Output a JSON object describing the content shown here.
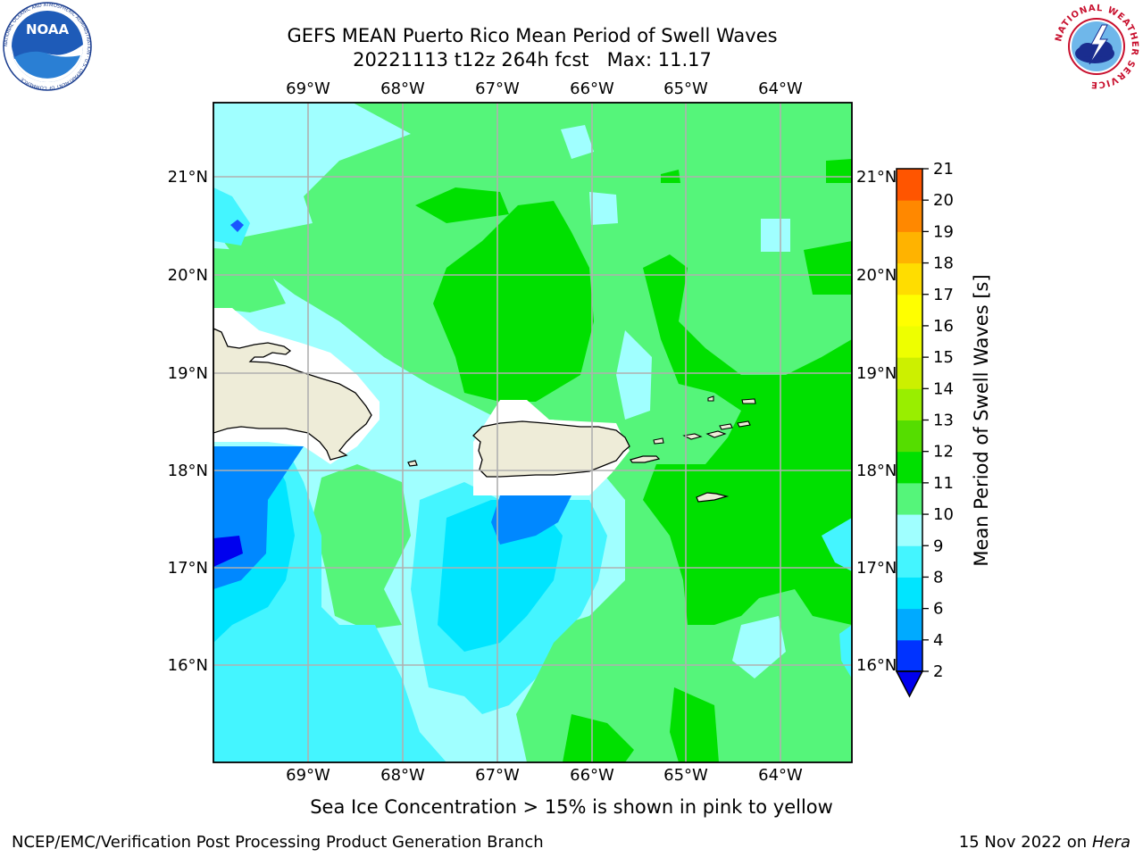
{
  "title": {
    "line1": "GEFS MEAN Puerto Rico Mean Period of Swell Waves",
    "line2": "20221113 t12z 264h fcst   Max: 11.17"
  },
  "map": {
    "lon_labels": [
      "69°W",
      "68°W",
      "67°W",
      "66°W",
      "65°W",
      "64°W"
    ],
    "lat_labels": [
      "21°N",
      "20°N",
      "19°N",
      "18°N",
      "17°N",
      "16°N"
    ],
    "land_color": "#eeecd8",
    "grid_color": "#b0b0b0"
  },
  "colorbar": {
    "label": "Mean Period of Swell Waves [s]",
    "ticks": [
      "2",
      "4",
      "6",
      "8",
      "9",
      "10",
      "11",
      "12",
      "13",
      "14",
      "15",
      "16",
      "17",
      "18",
      "19",
      "20",
      "21"
    ],
    "colors": [
      "#0033ff",
      "#00aaff",
      "#00e5ff",
      "#44f5ff",
      "#a0ffff",
      "#55f57a",
      "#00e000",
      "#55dd00",
      "#99ee00",
      "#ccf000",
      "#eeff00",
      "#ffff00",
      "#ffdd00",
      "#ffb300",
      "#ff8800",
      "#ff5500",
      "#ff2200",
      "#ff0000"
    ],
    "under_color": "#0000ee"
  },
  "footer": {
    "caption": "Sea Ice Concentration > 15% is shown in pink to yellow",
    "credit": "NCEP/EMC/Verification Post Processing Product Generation Branch",
    "date": "15 Nov 2022 on",
    "machine": "Hera"
  },
  "logos": {
    "left": "NOAA",
    "left_ring": "NATIONAL OCEANIC AND ATMOSPHERIC ADMINISTRATION · U.S. DEPARTMENT OF COMMERCE",
    "right_ring": "NATIONAL WEATHER SERVICE"
  }
}
